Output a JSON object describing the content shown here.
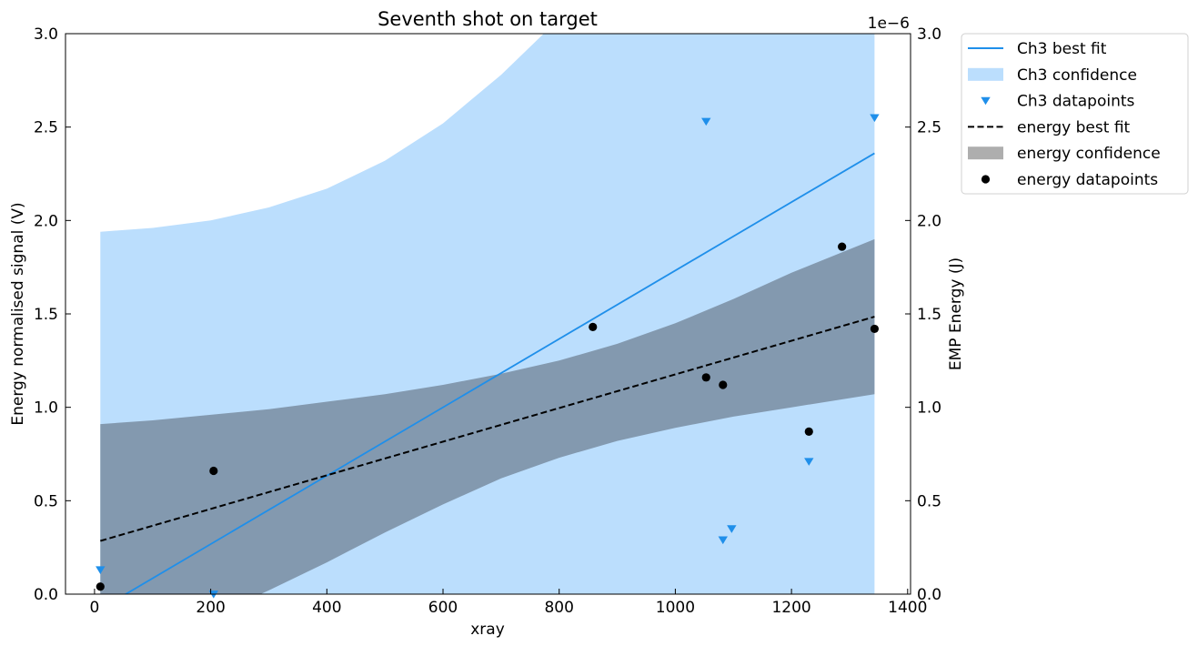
{
  "chart_data": {
    "type": "line",
    "title": "Seventh shot on target",
    "xlabel": "xray",
    "ylabel": "Energy normalised signal (V)",
    "ylabel_right": "EMP Energy (J)",
    "right_axis_offset": "1e−6",
    "xlim": [
      -50,
      1405
    ],
    "ylim": [
      0,
      3.0
    ],
    "ylim_right": [
      0,
      3.0
    ],
    "x_ticks": [
      0,
      200,
      400,
      600,
      800,
      1000,
      1200,
      1400
    ],
    "y_ticks": [
      0.0,
      0.5,
      1.0,
      1.5,
      2.0,
      2.5,
      3.0
    ],
    "y_ticks_right": [
      0.0,
      0.5,
      1.0,
      1.5,
      2.0,
      2.5,
      3.0
    ],
    "x_tick_labels": [
      "0",
      "200",
      "400",
      "600",
      "800",
      "1000",
      "1200",
      "1400"
    ],
    "y_tick_labels": [
      "0.0",
      "0.5",
      "1.0",
      "1.5",
      "2.0",
      "2.5",
      "3.0"
    ],
    "y_tick_labels_right": [
      "0.0",
      "0.5",
      "1.0",
      "1.5",
      "2.0",
      "2.5",
      "3.0"
    ],
    "grid": false,
    "legend_position": "outside-right-top",
    "legend": [
      {
        "label": "Ch3 best fit",
        "kind": "line",
        "color": "#1f8fea"
      },
      {
        "label": "Ch3 confidence",
        "kind": "patch",
        "color": "#bbdefd"
      },
      {
        "label": "Ch3 datapoints",
        "kind": "triangle",
        "color": "#1f8fea"
      },
      {
        "label": "energy best fit",
        "kind": "dashed",
        "color": "#000000"
      },
      {
        "label": "energy confidence",
        "kind": "patch",
        "color": "#aeaeae"
      },
      {
        "label": "energy datapoints",
        "kind": "circle",
        "color": "#000000"
      }
    ],
    "series": [
      {
        "name": "Ch3 datapoints",
        "axis": "left",
        "marker": "triangle-down",
        "color": "#1f8fea",
        "x": [
          10,
          205,
          1053,
          1082,
          1097,
          1230,
          1343
        ],
        "y": [
          0.13,
          0.0,
          2.53,
          0.29,
          0.35,
          0.71,
          2.55
        ]
      },
      {
        "name": "energy datapoints",
        "axis": "right",
        "marker": "circle",
        "color": "#000000",
        "x": [
          10,
          205,
          858,
          1053,
          1082,
          1230,
          1287,
          1343
        ],
        "y": [
          0.04,
          0.66,
          1.43,
          1.16,
          1.12,
          0.87,
          1.86,
          1.42
        ]
      },
      {
        "name": "Ch3 best fit",
        "axis": "left",
        "style": "solid",
        "color": "#1f8fea",
        "x": [
          10,
          1343
        ],
        "y": [
          -0.08,
          2.36
        ]
      },
      {
        "name": "energy best fit",
        "axis": "right",
        "style": "dashed",
        "color": "#000000",
        "x": [
          10,
          1343
        ],
        "y": [
          0.285,
          1.485
        ]
      }
    ],
    "bands": [
      {
        "name": "Ch3 confidence",
        "color": "#bbdefd",
        "x": [
          10,
          100,
          200,
          300,
          400,
          500,
          600,
          700,
          800,
          900,
          1000,
          1100,
          1200,
          1343
        ],
        "lower": [
          0,
          0,
          0,
          0,
          0,
          0,
          0,
          0,
          0,
          0,
          0,
          0,
          0,
          0
        ],
        "upper": [
          1.94,
          1.96,
          2.0,
          2.07,
          2.17,
          2.32,
          2.52,
          2.78,
          3.08,
          3.45,
          3.88,
          4.35,
          4.86,
          5.6
        ]
      },
      {
        "name": "energy confidence",
        "color": "#8399af",
        "x": [
          10,
          100,
          200,
          300,
          400,
          500,
          600,
          700,
          800,
          900,
          1000,
          1100,
          1200,
          1343
        ],
        "lower": [
          -0.34,
          -0.24,
          -0.12,
          0.02,
          0.17,
          0.33,
          0.48,
          0.62,
          0.73,
          0.82,
          0.89,
          0.95,
          1.0,
          1.07
        ],
        "upper": [
          0.91,
          0.93,
          0.96,
          0.99,
          1.03,
          1.07,
          1.12,
          1.18,
          1.25,
          1.34,
          1.45,
          1.58,
          1.72,
          1.9
        ]
      }
    ]
  }
}
